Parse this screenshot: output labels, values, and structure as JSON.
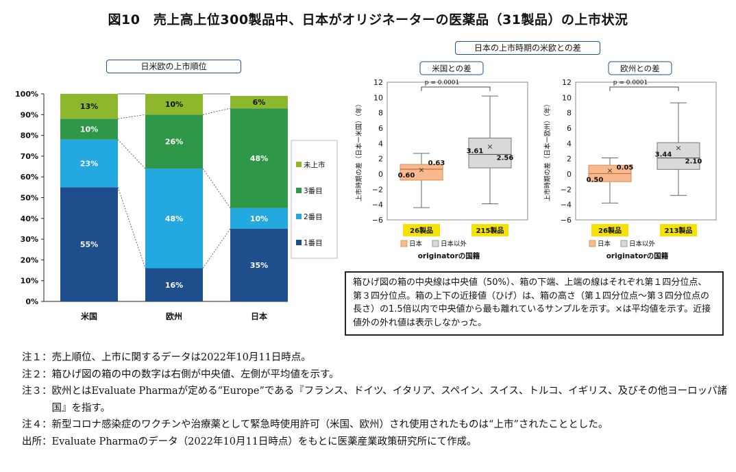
{
  "title": "図10　売上高上位300製品中、日本がオリジネーターの医薬品（31製品）の上市状況",
  "left_chart": {
    "box_title": "日米欧の上市順位",
    "y_ticks": [
      "0%",
      "10%",
      "20%",
      "30%",
      "40%",
      "50%",
      "60%",
      "70%",
      "80%",
      "90%",
      "100%"
    ],
    "categories": [
      "米国",
      "欧州",
      "日本"
    ],
    "legend": [
      "未上市",
      "3番目",
      "2番目",
      "1番目"
    ],
    "colors": {
      "rank1": "#1f4e8c",
      "rank2": "#23a8e0",
      "rank3": "#2e9848",
      "not_launched": "#8db82e"
    }
  },
  "right_title": "日本の上市時期の米欧との差",
  "box_left": {
    "box_title": "米国との差",
    "ylabel": "上市時期の差（日本ー米国）（年）",
    "y_ticks": [
      "12",
      "10",
      "8",
      "6",
      "4",
      "2",
      "0",
      "−2",
      "−4",
      "−6"
    ],
    "p_label": "p = 0.0001",
    "count_labels": [
      "26製品",
      "215製品"
    ],
    "legend": [
      "日本",
      "日本以外"
    ],
    "xlabel": "originatorの国籍"
  },
  "box_right": {
    "box_title": "欧州との差",
    "ylabel": "上市時期の差（日本ー欧州）（年）",
    "y_ticks": [
      "12",
      "10",
      "8",
      "6",
      "4",
      "2",
      "0",
      "−2",
      "−4",
      "−6"
    ],
    "p_label": "p = 0.0001",
    "count_labels": [
      "26製品",
      "213製品"
    ],
    "legend": [
      "日本",
      "日本以外"
    ],
    "xlabel": "originatorの国籍"
  },
  "explanation": "箱ひげ図の箱の中央線は中央値（50%）、箱の下端、上端の線はそれぞれ第１四分位点、第３四分位点。箱の上下の近接値（ひげ）は、箱の高さ（第１四分位点～第３四分位点の長さ）の1.5倍以内で中央値から最も離れているサンプルを示す。×は平均値を示す。近接値外の外れ値は表示しなかった。",
  "notes": [
    {
      "label": "注１：",
      "text": "売上順位、上市に関するデータは2022年10月11日時点。"
    },
    {
      "label": "注２：",
      "text": "箱ひげ図の箱の中の数字は右側が中央値、左側が平均値を示す。"
    },
    {
      "label": "注３：",
      "text": "欧州とはEvaluate Pharmaが定める“Europe”である『フランス、ドイツ、イタリア、スペイン、スイス、トルコ、イギリス、及びその他ヨーロッパ諸国』を指す。"
    },
    {
      "label": "注４：",
      "text": "新型コロナ感染症のワクチンや治療薬として緊急時使用許可（米国、欧州）され使用されたものは“上市”されたこととした。"
    },
    {
      "label": "出所：",
      "text": "Evaluate Pharmaのデータ（2022年10月11日時点）をもとに医薬産業政策研究所にて作成。"
    }
  ],
  "chart_data": [
    {
      "type": "bar",
      "stacked": true,
      "title": "日米欧の上市順位",
      "categories": [
        "米国",
        "欧州",
        "日本"
      ],
      "series": [
        {
          "name": "1番目",
          "values": [
            55,
            16,
            35
          ],
          "labels": [
            "55%",
            "16%",
            "35%"
          ]
        },
        {
          "name": "2番目",
          "values": [
            23,
            48,
            10
          ],
          "labels": [
            "23%",
            "48%",
            "10%"
          ]
        },
        {
          "name": "3番目",
          "values": [
            10,
            26,
            48
          ],
          "labels": [
            "10%",
            "26%",
            "48%"
          ]
        },
        {
          "name": "未上市",
          "values": [
            13,
            10,
            6
          ],
          "labels": [
            "13%",
            "10%",
            "6%"
          ]
        }
      ],
      "ylim": [
        0,
        100
      ],
      "xlabel": "",
      "ylabel": ""
    },
    {
      "type": "box",
      "title": "米国との差",
      "ylabel": "上市時期の差（日本ー米国）（年）",
      "xlabel": "originatorの国籍",
      "ylim": [
        -6,
        12
      ],
      "groups": [
        {
          "name": "日本",
          "count": "26製品",
          "whisker_low": -4.4,
          "q1": -0.8,
          "median": 0.63,
          "q3": 1.25,
          "whisker_high": 2.7,
          "mean": 0.6,
          "mean_label": "0.60",
          "median_label": "0.63",
          "color": "#f8b98f"
        },
        {
          "name": "日本以外",
          "count": "215製品",
          "whisker_low": -3.9,
          "q1": 0.8,
          "median": 2.56,
          "q3": 4.7,
          "whisker_high": 10.2,
          "mean": 3.61,
          "mean_label": "3.61",
          "median_label": "2.56",
          "color": "#d9d9d9"
        }
      ],
      "p_value": "p = 0.0001"
    },
    {
      "type": "box",
      "title": "欧州との差",
      "ylabel": "上市時期の差（日本ー欧州）（年）",
      "xlabel": "originatorの国籍",
      "ylim": [
        -6,
        12
      ],
      "groups": [
        {
          "name": "日本",
          "count": "26製品",
          "whisker_low": -3.8,
          "q1": -1.0,
          "median": 0.05,
          "q3": 1.15,
          "whisker_high": 2.1,
          "mean": 0.5,
          "mean_label": "0.50",
          "median_label": "0.05",
          "color": "#f8b98f"
        },
        {
          "name": "日本以外",
          "count": "213製品",
          "whisker_low": -2.8,
          "q1": 0.6,
          "median": 2.1,
          "q3": 4.1,
          "whisker_high": 9.3,
          "mean": 3.44,
          "mean_label": "3.44",
          "median_label": "2.10",
          "color": "#d9d9d9"
        }
      ],
      "p_value": "p = 0.0001"
    }
  ]
}
